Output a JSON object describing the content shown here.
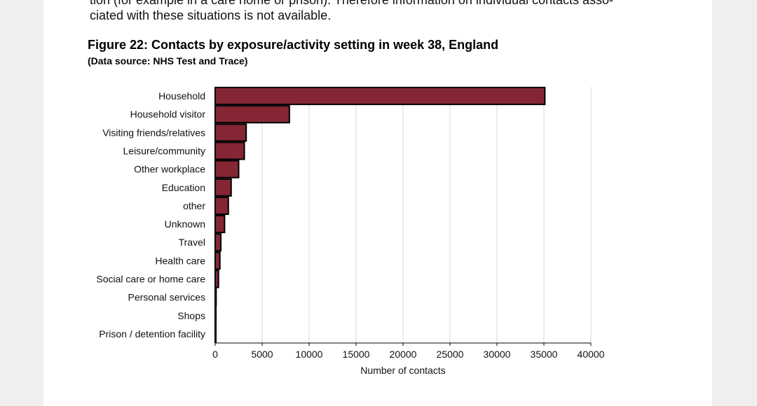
{
  "document": {
    "line_1": "tion (for example in a care home or prison). Therefore information on individual contacts asso-",
    "line_2": "ciated with these situations is not available.",
    "figure_title": "Figure 22: Contacts by exposure/activity setting in week 38, England",
    "figure_source": "(Data source: NHS Test and Trace)"
  },
  "chart_data": {
    "type": "bar",
    "orientation": "horizontal",
    "title": "",
    "xlabel": "Number of contacts",
    "ylabel": "",
    "xlim": [
      0,
      40000
    ],
    "xticks": [
      0,
      5000,
      10000,
      15000,
      20000,
      25000,
      30000,
      35000,
      40000
    ],
    "grid": true,
    "legend": "none",
    "bar_color": "#852634",
    "bar_edge_color": "#000000",
    "categories": [
      "Household",
      "Household visitor",
      "Visiting friends/relatives",
      "Leisure/community",
      "Other workplace",
      "Education",
      "other",
      "Unknown",
      "Travel",
      "Health care",
      "Social care or home care",
      "Personal services",
      "Shops",
      "Prison / detention facility"
    ],
    "values": [
      35100,
      7900,
      3300,
      3100,
      2500,
      1700,
      1400,
      1000,
      600,
      500,
      350,
      100,
      80,
      50
    ]
  }
}
